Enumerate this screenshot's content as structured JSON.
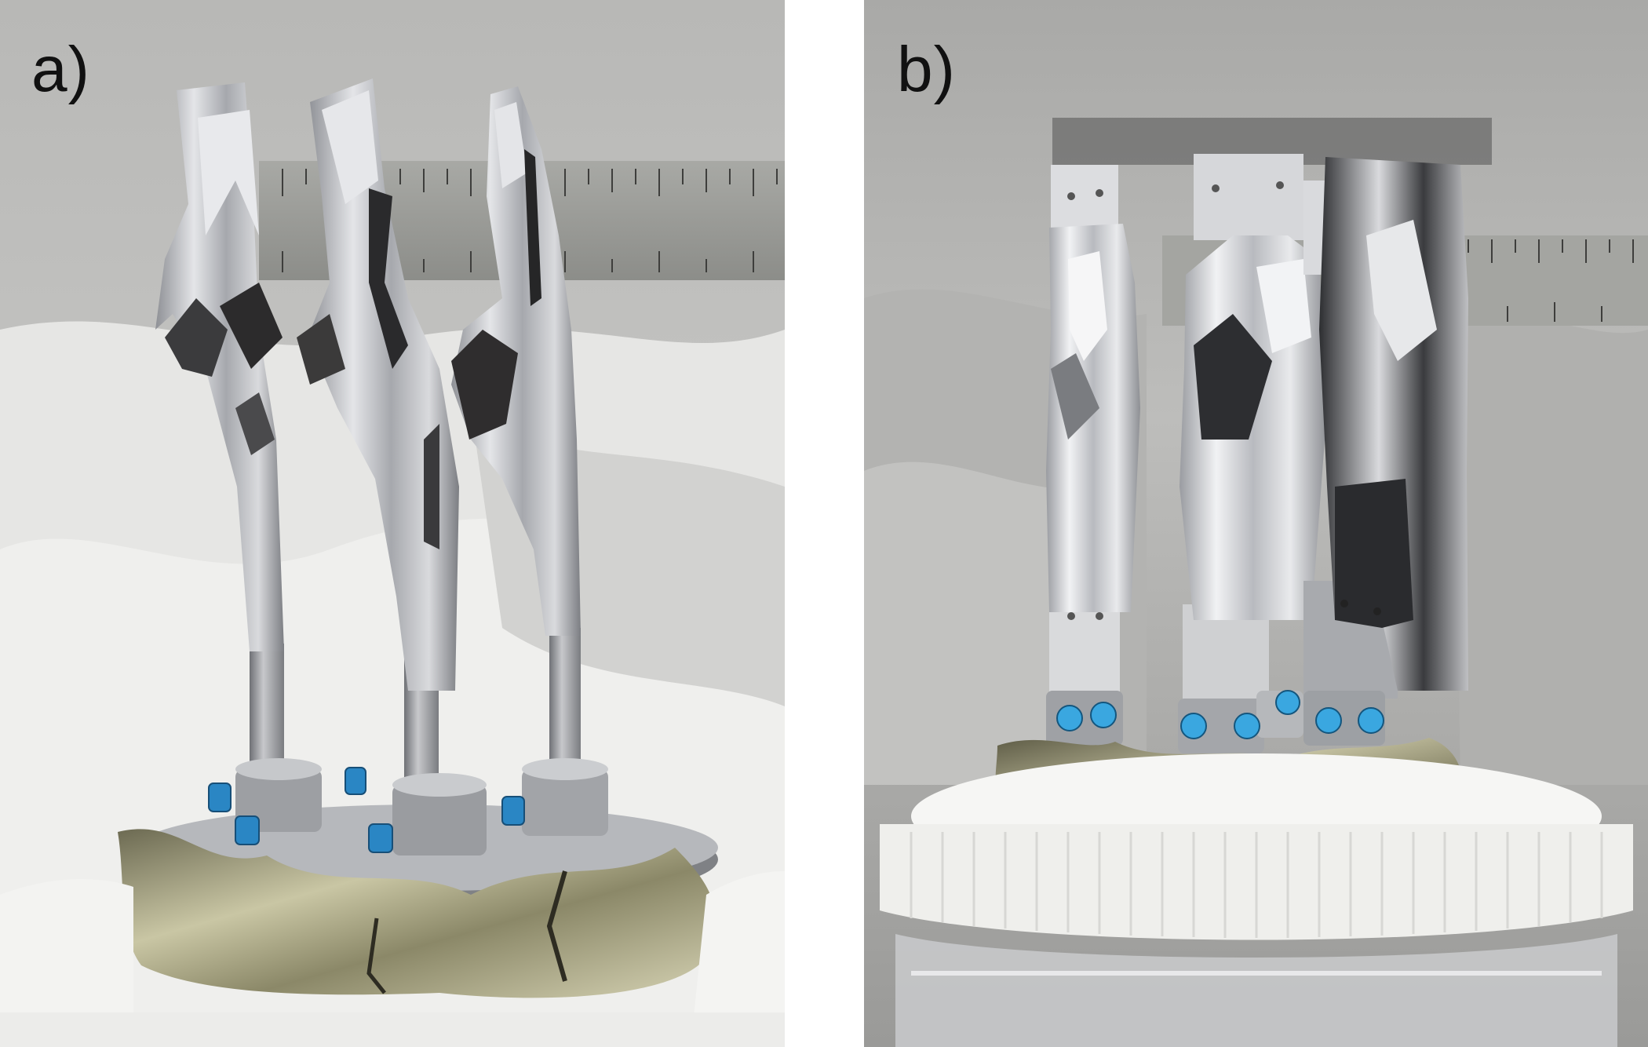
{
  "panels": [
    {
      "id": "a",
      "label": "a)",
      "description_name": "photo-used-electrodes"
    },
    {
      "id": "b",
      "label": "b)",
      "description_name": "photo-new-electrodes"
    }
  ],
  "colors": {
    "background": "#ffffff",
    "label_text": "#111111",
    "foil_silver": "#c9cbcf",
    "ruler_steel": "#9a9b97",
    "screw_blue": "#2a86c4",
    "backdrop_gray": "#b9b9b7"
  }
}
